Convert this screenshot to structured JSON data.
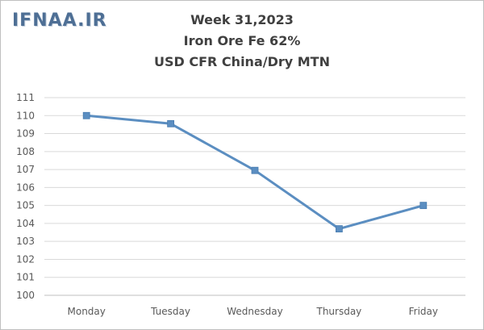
{
  "watermark": "IFNAA.IR",
  "chart_data": {
    "type": "line",
    "title": [
      "Week 31,2023",
      "Iron Ore Fe 62%",
      "USD CFR China/Dry MTN"
    ],
    "categories": [
      "Monday",
      "Tuesday",
      "Wednesday",
      "Thursday",
      "Friday"
    ],
    "series": [
      {
        "values": [
          110.0,
          109.55,
          106.95,
          103.7,
          105.0
        ],
        "color": "#5b8ec1"
      }
    ],
    "xlabel": "",
    "ylabel": "",
    "ylim": [
      100,
      111
    ],
    "yticks": [
      "100",
      "101",
      "102",
      "103",
      "104",
      "105",
      "106",
      "107",
      "108",
      "109",
      "110",
      "111"
    ],
    "grid": true,
    "legend": "none"
  }
}
